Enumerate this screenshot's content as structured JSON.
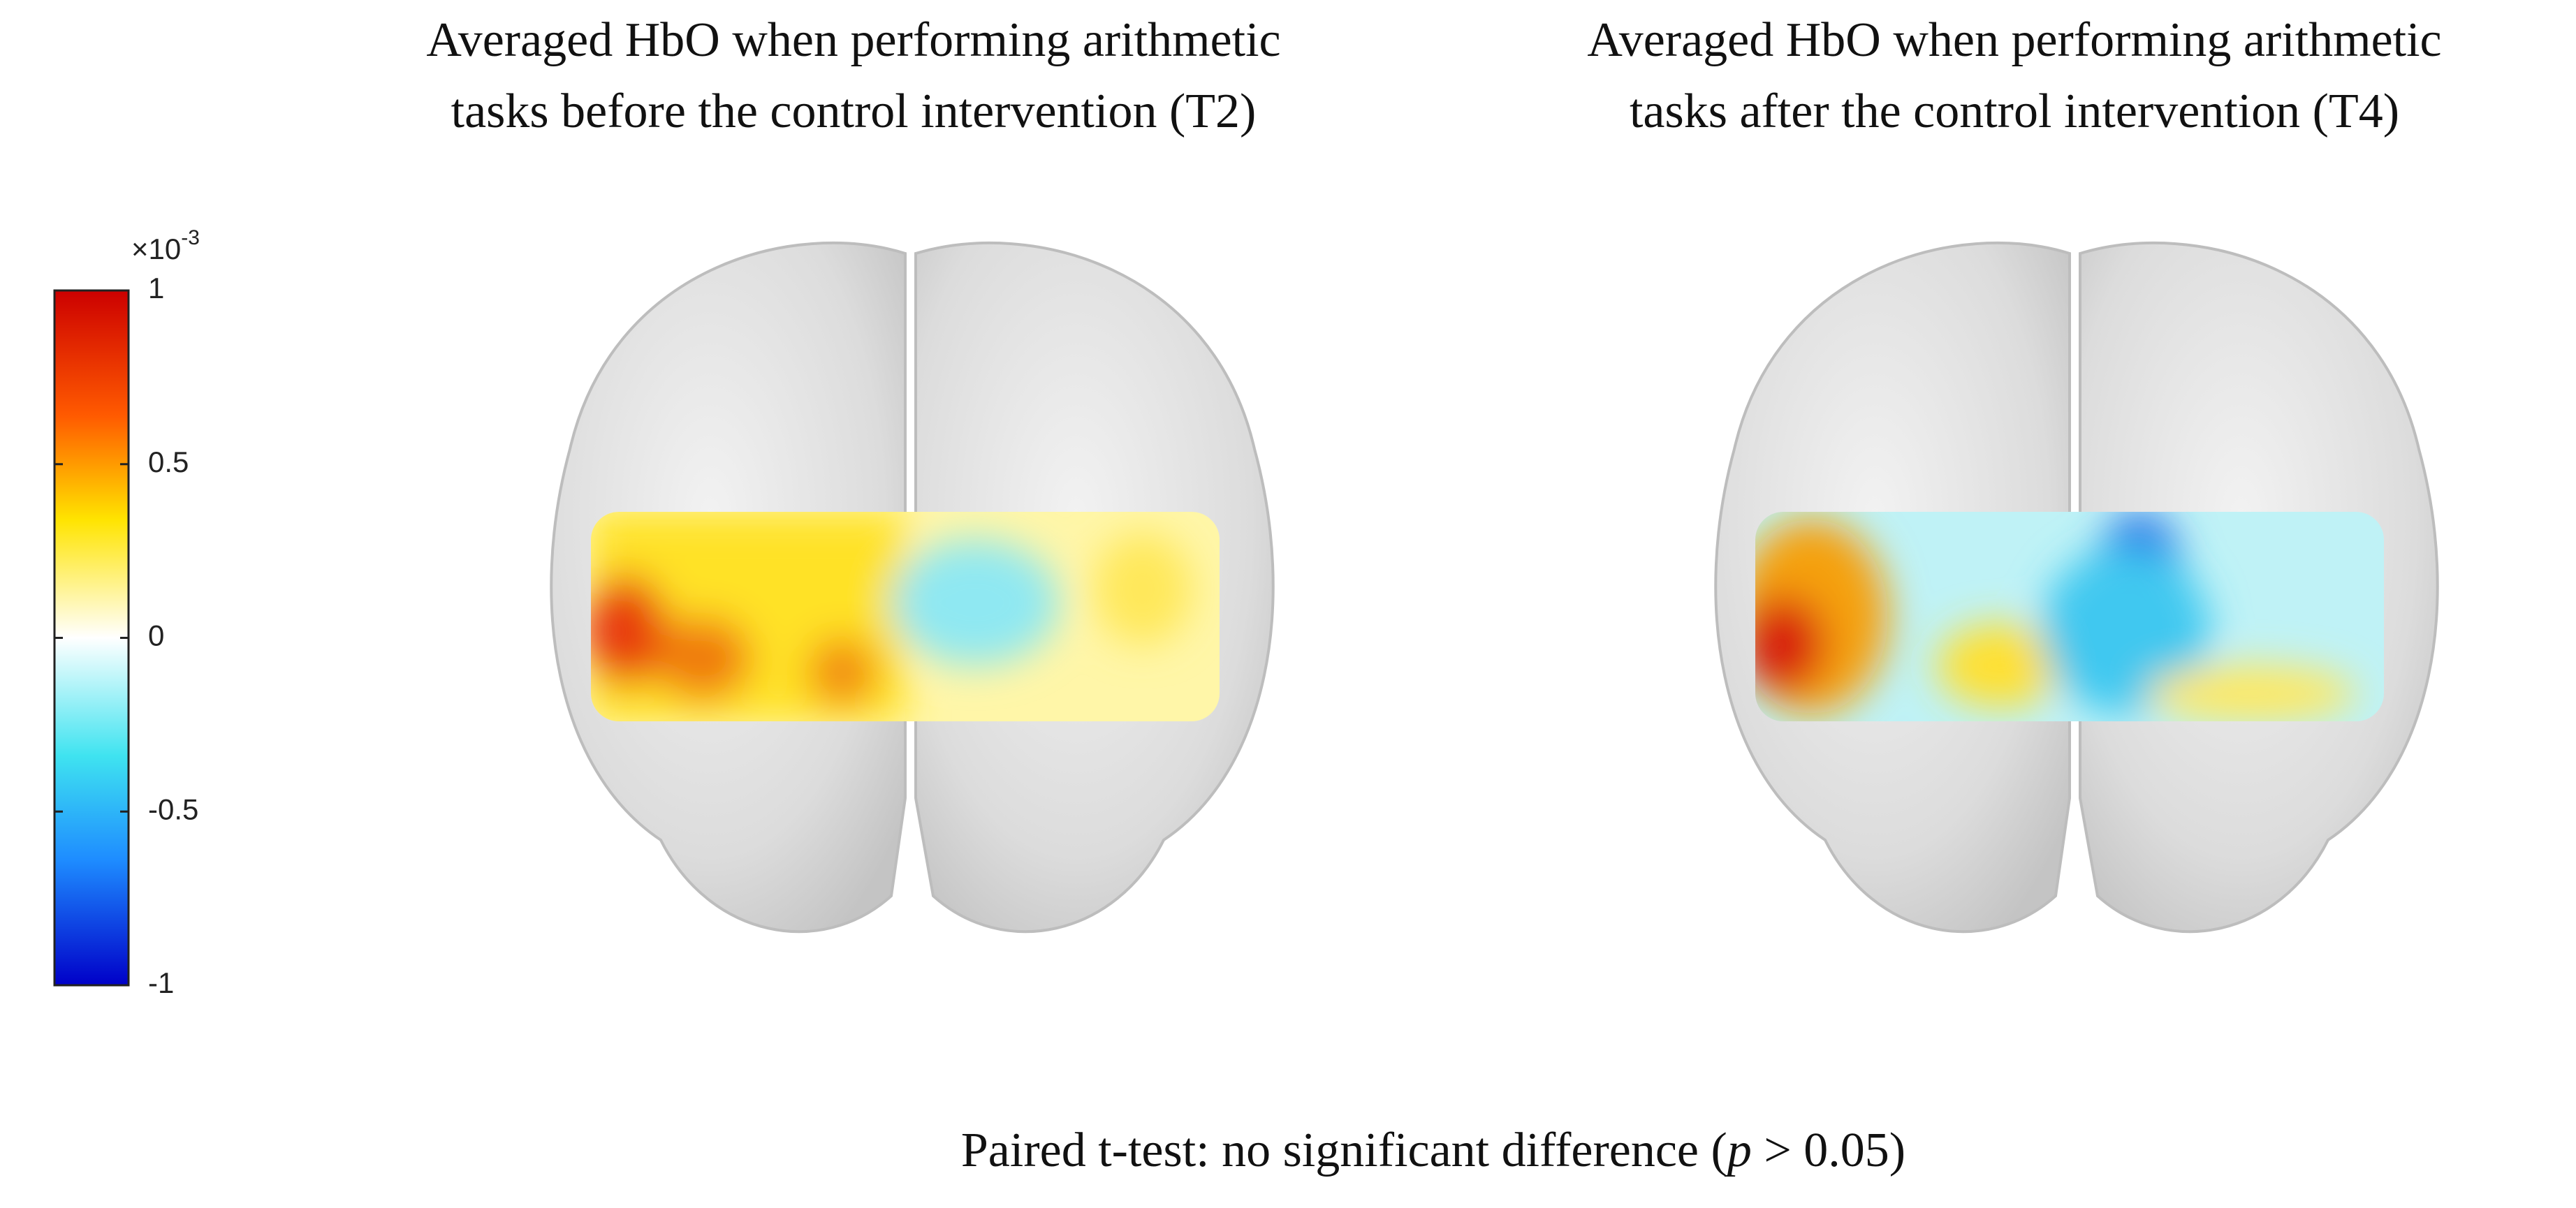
{
  "panels": [
    {
      "title_lines": [
        "Averaged HbO when performing arithmetic",
        "tasks before the control intervention (T2)"
      ]
    },
    {
      "title_lines": [
        "Averaged HbO when performing arithmetic",
        "tasks after the control intervention (T4)"
      ]
    }
  ],
  "colorbar": {
    "scale_base": "×10",
    "scale_power": "-3",
    "lim": [
      -1,
      1
    ],
    "ticks": [
      1,
      0.5,
      0,
      -0.5,
      -1
    ]
  },
  "footer": {
    "parts": [
      "Paired t-test: no significant difference (",
      "p",
      " > 0.05)"
    ]
  }
}
